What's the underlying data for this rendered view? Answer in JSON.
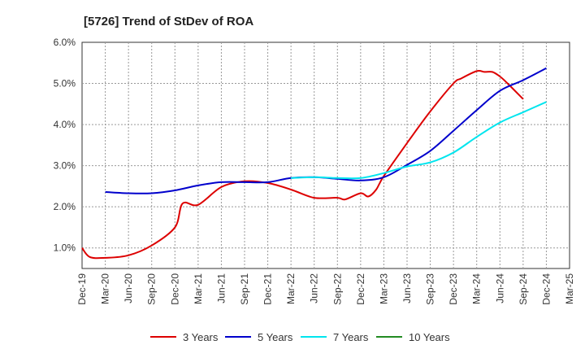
{
  "chart_data": {
    "type": "line",
    "title": "[5726]  Trend of StDev of ROA",
    "xlabel": "",
    "ylabel": "",
    "categories": [
      "Dec-19",
      "Mar-20",
      "Jun-20",
      "Sep-20",
      "Dec-20",
      "Mar-21",
      "Jun-21",
      "Sep-21",
      "Dec-21",
      "Mar-22",
      "Jun-22",
      "Sep-22",
      "Dec-22",
      "Mar-23",
      "Jun-23",
      "Sep-23",
      "Dec-23",
      "Mar-24",
      "Jun-24",
      "Sep-24",
      "Dec-24",
      "Mar-25"
    ],
    "y_ticks": [
      "1.0%",
      "2.0%",
      "3.0%",
      "4.0%",
      "5.0%",
      "6.0%"
    ],
    "ylim": [
      0.5,
      6.0
    ],
    "grid": true,
    "legend_position": "bottom",
    "series": [
      {
        "name": "3 Years",
        "color": "#dd0000",
        "values": [
          1.0,
          0.76,
          0.82,
          1.06,
          1.5,
          2.05,
          2.48,
          2.62,
          2.58,
          2.42,
          2.22,
          2.22,
          2.33,
          2.75,
          3.55,
          4.32,
          5.0,
          5.3,
          5.17,
          4.62,
          null,
          null
        ],
        "extra": [
          [
            0.33,
            0.78
          ],
          [
            4.33,
            2.08
          ],
          [
            11.33,
            2.18
          ],
          [
            12.33,
            2.25
          ],
          [
            12.67,
            2.42
          ],
          [
            16.33,
            5.12
          ],
          [
            17.33,
            5.28
          ],
          [
            17.67,
            5.28
          ],
          [
            18.33,
            5.0
          ]
        ]
      },
      {
        "name": "5 Years",
        "color": "#0000cc",
        "values": [
          null,
          2.36,
          2.33,
          2.33,
          2.4,
          2.52,
          2.6,
          2.6,
          2.6,
          2.7,
          2.72,
          2.68,
          2.64,
          2.72,
          3.02,
          3.36,
          3.85,
          4.35,
          4.82,
          5.08,
          5.37,
          null
        ]
      },
      {
        "name": "7 Years",
        "color": "#00e5ee",
        "values": [
          null,
          null,
          null,
          null,
          null,
          null,
          null,
          null,
          null,
          2.7,
          2.72,
          2.7,
          2.7,
          2.82,
          2.98,
          3.08,
          3.32,
          3.7,
          4.05,
          4.3,
          4.55,
          null
        ]
      },
      {
        "name": "10 Years",
        "color": "#228b22",
        "values": [
          null,
          null,
          null,
          null,
          null,
          null,
          null,
          null,
          null,
          null,
          null,
          null,
          null,
          null,
          null,
          null,
          null,
          null,
          null,
          null,
          null,
          null
        ]
      }
    ]
  }
}
